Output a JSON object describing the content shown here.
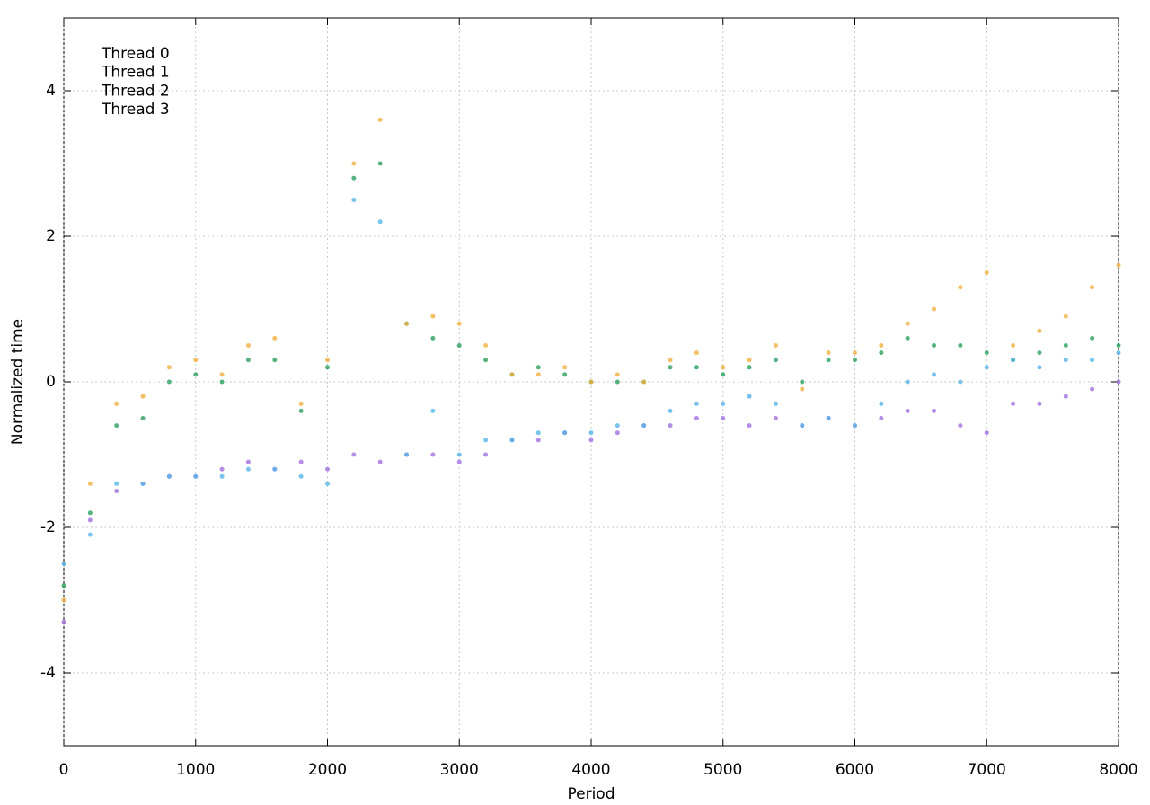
{
  "chart_data": {
    "type": "scatter",
    "xlabel": "Period",
    "ylabel": "Normalized time",
    "x": [
      0,
      200,
      400,
      600,
      800,
      1000,
      1200,
      1400,
      1600,
      1800,
      2000,
      2200,
      2400,
      2600,
      2800,
      3000,
      3200,
      3400,
      3600,
      3800,
      4000,
      4200,
      4400,
      4600,
      4800,
      5000,
      5200,
      5400,
      5600,
      5800,
      6000,
      6200,
      6400,
      6600,
      6800,
      7000,
      7200,
      7400,
      7600,
      7800,
      8000
    ],
    "series": [
      {
        "name": "Thread 0",
        "color": "#a070e0",
        "values": [
          -3.3,
          -1.9,
          -1.5,
          -1.4,
          -1.3,
          -1.3,
          -1.2,
          -1.1,
          -1.2,
          -1.1,
          -1.2,
          -1.0,
          -1.1,
          -1.0,
          -1.0,
          -1.1,
          -1.0,
          -0.8,
          -0.8,
          -0.7,
          -0.8,
          -0.7,
          -0.6,
          -0.6,
          -0.5,
          -0.5,
          -0.6,
          -0.5,
          -0.6,
          -0.5,
          -0.6,
          -0.5,
          -0.4,
          -0.4,
          -0.6,
          -0.7,
          -0.3,
          -0.3,
          -0.2,
          -0.1,
          0.0
        ]
      },
      {
        "name": "Thread 1",
        "color": "#2ca060",
        "values": [
          -2.8,
          -1.8,
          -0.6,
          -0.5,
          0.0,
          0.1,
          0.0,
          0.3,
          0.3,
          -0.4,
          0.2,
          2.8,
          3.0,
          0.8,
          0.6,
          0.5,
          0.3,
          0.1,
          0.2,
          0.1,
          0.0,
          0.0,
          0.0,
          0.2,
          0.2,
          0.1,
          0.2,
          0.3,
          0.0,
          0.3,
          0.3,
          0.4,
          0.6,
          0.5,
          0.5,
          0.4,
          0.3,
          0.4,
          0.5,
          0.6,
          0.5
        ]
      },
      {
        "name": "Thread 2",
        "color": "#56b4e9",
        "values": [
          -2.5,
          -2.1,
          -1.4,
          -1.4,
          -1.3,
          -1.3,
          -1.3,
          -1.2,
          -1.2,
          -1.3,
          -1.4,
          2.5,
          2.2,
          -1.0,
          -0.4,
          -1.0,
          -0.8,
          -0.8,
          -0.7,
          -0.7,
          -0.7,
          -0.6,
          -0.6,
          -0.4,
          -0.3,
          -0.3,
          -0.2,
          -0.3,
          -0.6,
          -0.5,
          -0.6,
          -0.3,
          0.0,
          0.1,
          0.0,
          0.2,
          0.3,
          0.2,
          0.3,
          0.3,
          0.4
        ]
      },
      {
        "name": "Thread 3",
        "color": "#f0b040",
        "values": [
          -3.0,
          -1.4,
          -0.3,
          -0.2,
          0.2,
          0.3,
          0.1,
          0.5,
          0.6,
          -0.3,
          0.3,
          3.0,
          3.6,
          0.8,
          0.9,
          0.8,
          0.5,
          0.1,
          0.1,
          0.2,
          0.0,
          0.1,
          0.0,
          0.3,
          0.4,
          0.2,
          0.3,
          0.5,
          -0.1,
          0.4,
          0.4,
          0.5,
          0.8,
          1.0,
          1.3,
          1.5,
          0.5,
          0.7,
          0.9,
          1.3,
          1.6
        ]
      }
    ],
    "xlim": [
      0,
      8000
    ],
    "xticks": [
      0,
      1000,
      2000,
      3000,
      4000,
      5000,
      6000,
      7000,
      8000
    ],
    "ylim": [
      -5,
      5
    ],
    "yticks": [
      -4,
      -2,
      0,
      2,
      4
    ],
    "grid": true,
    "legend": "top-left"
  }
}
